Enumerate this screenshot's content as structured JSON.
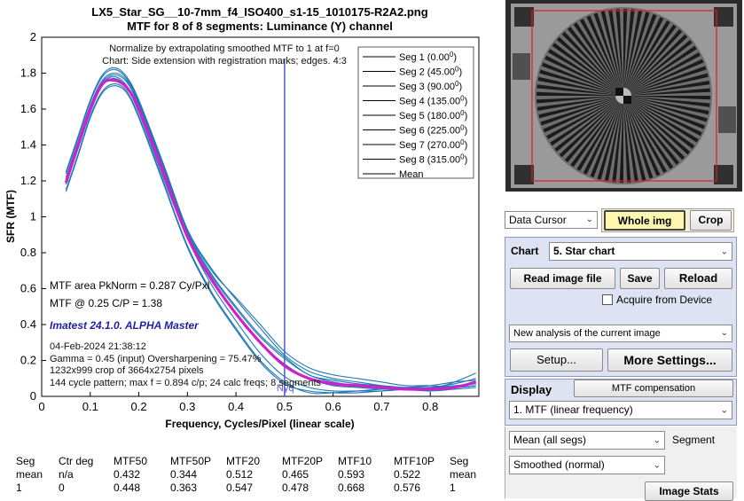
{
  "figure": {
    "title_line1": "LX5_Star_SG__10-7mm_f4_ISO400_s1-15_1010175-R2A2.png",
    "title_line2": "MTF for 8 of 8 segments:  Luminance (Y) channel",
    "note_line1": "Normalize by extrapolating smoothed MTF to 1 at f=0",
    "note_line2": "Chart: Side extension with registration marks; edges. 4:3",
    "mtf_area": "MTF area PkNorm = 0.287 Cy/Pxl",
    "mtf_at": "MTF @ 0.25 C/P = 1.38",
    "version": "Imatest 24.1.0. ALPHA Master",
    "date": "04-Feb-2024 21:38:12",
    "gamma": "Gamma = 0.45 (input)  Oversharpening = 75.47%",
    "crop": "1232x999 crop of 3664x2754 pixels",
    "pattern": "144 cycle pattern; max f = 0.894 c/p;  24 calc freqs;  8 segments",
    "nyq_label": "Nyq"
  },
  "chart_data": {
    "type": "line",
    "xlabel": "Frequency, Cycles/Pixel (linear scale)",
    "ylabel": "SFR (MTF)",
    "xlim": [
      0,
      0.9
    ],
    "ylim": [
      0,
      2
    ],
    "x_ticks": [
      "0",
      "0.1",
      "0.2",
      "0.3",
      "0.4",
      "0.5",
      "0.6",
      "0.7",
      "0.8"
    ],
    "y_ticks": [
      "0",
      "0.2",
      "0.4",
      "0.6",
      "0.8",
      "1",
      "1.2",
      "1.4",
      "1.6",
      "1.8",
      "2"
    ],
    "nyquist_x": 0.5,
    "legend_position": "top-right",
    "x": [
      0.05,
      0.075,
      0.1,
      0.125,
      0.15,
      0.175,
      0.2,
      0.25,
      0.3,
      0.35,
      0.4,
      0.45,
      0.5,
      0.55,
      0.6,
      0.65,
      0.7,
      0.75,
      0.8,
      0.85,
      0.894
    ],
    "series": [
      {
        "name": "Seg 1 (0.00",
        "sup": "0",
        "close": ")",
        "color": "#1f77b4",
        "values": [
          1.22,
          1.42,
          1.62,
          1.76,
          1.8,
          1.76,
          1.63,
          1.28,
          0.92,
          0.68,
          0.5,
          0.34,
          0.22,
          0.12,
          0.09,
          0.07,
          0.06,
          0.05,
          0.05,
          0.06,
          0.07
        ]
      },
      {
        "name": "Seg 2 (45.00",
        "sup": "0",
        "close": ")",
        "color": "#1f77b4",
        "values": [
          1.18,
          1.38,
          1.58,
          1.73,
          1.77,
          1.72,
          1.58,
          1.22,
          0.88,
          0.62,
          0.42,
          0.24,
          0.11,
          0.05,
          0.03,
          0.03,
          0.03,
          0.04,
          0.05,
          0.07,
          0.1
        ]
      },
      {
        "name": "Seg 3 (90.00",
        "sup": "0",
        "close": ")",
        "color": "#1f77b4",
        "values": [
          1.25,
          1.45,
          1.65,
          1.79,
          1.83,
          1.78,
          1.65,
          1.3,
          0.93,
          0.7,
          0.55,
          0.4,
          0.25,
          0.16,
          0.12,
          0.1,
          0.08,
          0.06,
          0.06,
          0.05,
          0.06
        ]
      },
      {
        "name": "Seg 4 (135.00",
        "sup": "0",
        "close": ")",
        "color": "#1f77b4",
        "values": [
          1.15,
          1.35,
          1.56,
          1.7,
          1.74,
          1.7,
          1.56,
          1.2,
          0.84,
          0.58,
          0.38,
          0.2,
          0.08,
          0.02,
          0.02,
          0.03,
          0.04,
          0.05,
          0.06,
          0.08,
          0.09
        ]
      },
      {
        "name": "Seg 5 (180.00",
        "sup": "0",
        "close": ")",
        "color": "#1f77b4",
        "values": [
          1.21,
          1.41,
          1.61,
          1.75,
          1.79,
          1.75,
          1.62,
          1.27,
          0.91,
          0.67,
          0.49,
          0.33,
          0.21,
          0.12,
          0.08,
          0.06,
          0.05,
          0.04,
          0.04,
          0.08,
          0.13
        ]
      },
      {
        "name": "Seg 6 (225.00",
        "sup": "0",
        "close": ")",
        "color": "#1f77b4",
        "values": [
          1.19,
          1.39,
          1.59,
          1.74,
          1.78,
          1.73,
          1.6,
          1.24,
          0.88,
          0.64,
          0.46,
          0.3,
          0.18,
          0.1,
          0.06,
          0.05,
          0.04,
          0.04,
          0.04,
          0.05,
          0.06
        ]
      },
      {
        "name": "Seg 7 (270.00",
        "sup": "0",
        "close": ")",
        "color": "#1f77b4",
        "values": [
          1.24,
          1.44,
          1.64,
          1.78,
          1.82,
          1.77,
          1.64,
          1.29,
          0.93,
          0.71,
          0.54,
          0.38,
          0.23,
          0.14,
          0.1,
          0.08,
          0.06,
          0.04,
          0.03,
          0.04,
          0.05
        ]
      },
      {
        "name": "Seg 8 (315.00",
        "sup": "0",
        "close": ")",
        "color": "#1f77b4",
        "values": [
          1.14,
          1.34,
          1.55,
          1.69,
          1.73,
          1.69,
          1.55,
          1.19,
          0.83,
          0.57,
          0.37,
          0.19,
          0.07,
          0.03,
          0.02,
          0.02,
          0.03,
          0.04,
          0.05,
          0.05,
          0.06
        ]
      },
      {
        "name": "Mean",
        "sup": "",
        "close": "",
        "color": "#cc22cc",
        "values": [
          1.19,
          1.4,
          1.6,
          1.74,
          1.76,
          1.72,
          1.6,
          1.25,
          0.89,
          0.65,
          0.46,
          0.3,
          0.17,
          0.1,
          0.07,
          0.06,
          0.05,
          0.04,
          0.04,
          0.05,
          0.08
        ]
      }
    ]
  },
  "table": {
    "headers": [
      "Seg",
      "Ctr deg",
      "MTF50",
      "MTF50P",
      "MTF20",
      "MTF20P",
      "MTF10",
      "MTF10P",
      "Seg"
    ],
    "rows": [
      [
        "mean",
        "n/a",
        "0.432",
        "0.344",
        "0.512",
        "0.465",
        "0.593",
        "0.522",
        "mean"
      ],
      [
        "1",
        "0",
        "0.448",
        "0.363",
        "0.547",
        "0.478",
        "0.668",
        "0.576",
        "1"
      ]
    ]
  },
  "controls": {
    "data_cursor": "Data Cursor",
    "whole_img": "Whole img",
    "crop": "Crop",
    "chart_label": "Chart",
    "chart_value": "5. Star chart",
    "read_image": "Read image file",
    "save": "Save",
    "reload": "Reload",
    "acquire": "Acquire from Device",
    "analysis": "New analysis of the current image",
    "setup": "Setup...",
    "more_settings": "More Settings...",
    "display_label": "Display",
    "mtf_comp": "MTF compensation",
    "display_value": "1. MTF (linear frequency)",
    "mean_value": "Mean (all segs)",
    "segment_label": "Segment",
    "smooth_value": "Smoothed (normal)",
    "image_stats": "Image Stats"
  },
  "colors": {
    "segment_line": "#1f77b4",
    "mean_line": "#cc22cc",
    "nyquist_line": "#5555dd",
    "highlight_button": "#fff7b0",
    "panel_bg": "#dde3f2"
  }
}
